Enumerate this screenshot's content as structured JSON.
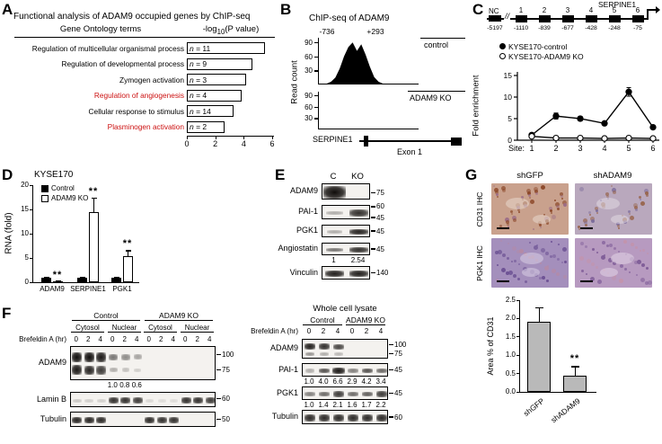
{
  "colors": {
    "highlight_red": "#cc1111",
    "gray_bar": "#b9b9b9",
    "blot_bg": "#f4f2ef"
  },
  "panelA": {
    "label": "A",
    "title": "Functional analysis of ADAM9 occupied genes by ChIP-seq",
    "header_terms": "Gene Ontology terms",
    "header_value_pre": "-log",
    "header_value_sub": "10",
    "header_value_post": "(P value)",
    "n_prefix": "n",
    "chart_data": {
      "type": "bar",
      "orientation": "horizontal",
      "title": "Functional analysis of ADAM9 occupied genes by ChIP-seq",
      "xlabel": "-log10(P value)",
      "xlim": [
        0,
        6
      ],
      "xticks": [
        0,
        2,
        4,
        6
      ],
      "categories": [
        "Regulation of multicellular organismal process",
        "Regulation of developmental process",
        "Zymogen activation",
        "Regulation of angiogenesis",
        "Cellular response to stimulus",
        "Plasminogen activation"
      ],
      "values": [
        5.4,
        4.5,
        4.1,
        3.8,
        3.2,
        2.6
      ],
      "n_values": [
        11,
        9,
        3,
        4,
        14,
        2
      ],
      "red_terms": [
        false,
        false,
        false,
        true,
        false,
        true
      ]
    }
  },
  "panelB": {
    "label": "B",
    "title": "ChIP-seq of ADAM9",
    "ylabel": "Read count",
    "region_start": "-736",
    "region_end": "+293",
    "ymax": 100,
    "tracks": [
      {
        "name": "control",
        "yticks": [
          90,
          60,
          30
        ],
        "peak_profile": [
          0,
          2,
          6,
          15,
          34,
          60,
          80,
          90,
          72,
          86,
          64,
          38,
          16,
          6,
          2,
          0
        ]
      },
      {
        "name": "ADAM9 KO",
        "yticks": [
          90,
          60,
          30
        ],
        "peak_profile": [
          0,
          1,
          2,
          1,
          2,
          1,
          1,
          2,
          1,
          2,
          1,
          1,
          2,
          1,
          1,
          0
        ]
      }
    ],
    "gene_label": "SERPINE1",
    "exon_label": "Exon 1"
  },
  "panelC": {
    "label": "C",
    "diagram": {
      "nc_label": "NC",
      "break_mark": "//",
      "sites": [
        "1",
        "2",
        "3",
        "4",
        "5",
        "6"
      ],
      "gene_label": "SERPINE1",
      "nc_position": "-5197",
      "site_positions": [
        "-1110",
        "-839",
        "-677",
        "-428",
        "-248",
        "-75"
      ]
    },
    "legend": [
      {
        "label": "KYSE170-control",
        "marker": "filled"
      },
      {
        "label": "KYSE170-ADAM9 KO",
        "marker": "open"
      }
    ],
    "xaxis_prefix": "Site:",
    "chart_data": {
      "type": "line",
      "ylabel": "Fold enrichment",
      "ylim": [
        0,
        15
      ],
      "yticks": [
        0,
        5,
        10,
        15
      ],
      "x": [
        1,
        2,
        3,
        4,
        5,
        6
      ],
      "series": [
        {
          "name": "KYSE170-control",
          "marker": "filled",
          "values": [
            1.2,
            5.6,
            5.0,
            3.9,
            11.2,
            3.0
          ],
          "errors": [
            0.3,
            0.7,
            0.5,
            0.4,
            1.0,
            0.4
          ]
        },
        {
          "name": "KYSE170-ADAM9 KO",
          "marker": "open",
          "values": [
            0.9,
            0.5,
            0.5,
            0.4,
            0.5,
            0.4
          ],
          "errors": [
            0.2,
            0.1,
            0.1,
            0.1,
            0.1,
            0.1
          ]
        }
      ]
    }
  },
  "panelD": {
    "label": "D",
    "title": "KYSE170",
    "chart_data": {
      "type": "bar",
      "ylabel": "RNA (fold)",
      "ylim": [
        0,
        20
      ],
      "yticks": [
        0,
        5,
        10,
        15,
        20
      ],
      "categories": [
        "ADAM9",
        "SERPINE1",
        "PGK1"
      ],
      "series": [
        {
          "name": "Control",
          "fill": "#000000",
          "values": [
            1.0,
            1.0,
            1.0
          ],
          "errors": [
            0.1,
            0.2,
            0.1
          ]
        },
        {
          "name": "ADAM9 KO",
          "fill": "#ffffff",
          "values": [
            0.15,
            14.5,
            5.3
          ],
          "errors": [
            0.1,
            3.0,
            1.3
          ]
        }
      ],
      "significance": [
        "**",
        "**",
        "**"
      ]
    }
  },
  "panelE": {
    "label": "E",
    "lanes": [
      "C",
      "KO"
    ],
    "rows": [
      {
        "name": "ADAM9",
        "h": 18,
        "markers": [
          {
            "v": "75",
            "y": 0.6
          }
        ],
        "bands": [
          [
            0,
            0.5,
            1.0,
            1.2,
            1.5
          ]
        ]
      },
      {
        "name": "PAI-1",
        "h": 16,
        "markers": [
          {
            "v": "60",
            "y": 0.12
          },
          {
            "v": "45",
            "y": 0.88
          }
        ],
        "bands": [
          [
            0,
            0.5,
            0.3,
            0.85
          ],
          [
            1,
            0.5,
            0.85,
            1.0
          ]
        ]
      },
      {
        "name": "PGK1",
        "h": 14,
        "markers": [
          {
            "v": "45",
            "y": 0.5
          }
        ],
        "bands": [
          [
            0,
            0.5,
            0.3,
            0.8
          ],
          [
            1,
            0.5,
            0.9,
            1.0
          ]
        ]
      },
      {
        "name": "Angiostatin",
        "h": 14,
        "markers": [
          {
            "v": "45",
            "y": 0.5
          }
        ],
        "bands": [
          [
            0,
            0.5,
            0.55,
            0.9
          ],
          [
            1,
            0.5,
            0.85,
            1.0
          ]
        ],
        "values": [
          "1",
          "2.54"
        ]
      },
      {
        "name": "Vinculin",
        "h": 15,
        "markers": [
          {
            "v": "140",
            "y": 0.5
          }
        ],
        "bands": [
          [
            0,
            0.5,
            0.92,
            1.0
          ],
          [
            1,
            0.5,
            0.92,
            1.0
          ]
        ]
      }
    ]
  },
  "panelF": {
    "label": "F",
    "left": {
      "groups": [
        "Control",
        "ADAM9 KO"
      ],
      "fractions": [
        "Cytosol",
        "Nuclear",
        "Cytosol",
        "Nuclear"
      ],
      "treatment": "Brefeldin A (hr)",
      "times": [
        "0",
        "2",
        "4",
        "0",
        "2",
        "4",
        "0",
        "2",
        "4",
        "0",
        "2",
        "4"
      ],
      "rows": [
        {
          "name": "ADAM9",
          "h": 38,
          "markers": [
            {
              "v": "100",
              "y": 0.25
            },
            {
              "v": "75",
              "y": 0.7
            }
          ],
          "bands": [
            [
              0,
              0.3,
              1,
              1.05,
              0.6
            ],
            [
              1,
              0.3,
              1,
              1.05,
              0.6
            ],
            [
              2,
              0.3,
              0.95,
              1.05,
              0.6
            ],
            [
              0,
              0.68,
              0.95,
              1.05,
              0.6
            ],
            [
              1,
              0.68,
              0.9,
              1.05,
              0.6
            ],
            [
              2,
              0.68,
              0.8,
              1.0,
              0.6
            ],
            [
              3,
              0.3,
              0.55,
              0.9,
              0.55
            ],
            [
              4,
              0.3,
              0.45,
              0.9,
              0.55
            ],
            [
              5,
              0.3,
              0.35,
              0.85,
              0.55
            ],
            [
              3,
              0.68,
              0.3,
              0.8,
              0.5
            ],
            [
              4,
              0.68,
              0.22,
              0.75,
              0.5
            ],
            [
              5,
              0.68,
              0.16,
              0.7,
              0.5
            ]
          ],
          "values": [
            "",
            "",
            "",
            "1.0",
            "0.8",
            "0.6",
            "",
            "",
            "",
            "",
            "",
            ""
          ]
        },
        {
          "name": "Lamin B",
          "h": 17,
          "markers": [
            {
              "v": "60",
              "y": 0.45
            }
          ],
          "bands": [
            [
              0,
              0.5,
              0.18,
              0.9
            ],
            [
              1,
              0.5,
              0.15,
              0.9
            ],
            [
              2,
              0.5,
              0.15,
              0.9
            ],
            [
              3,
              0.5,
              0.85,
              1.0
            ],
            [
              4,
              0.5,
              0.85,
              1.0
            ],
            [
              5,
              0.5,
              0.8,
              1.0
            ],
            [
              6,
              0.5,
              0.12,
              0.85
            ],
            [
              7,
              0.5,
              0.1,
              0.85
            ],
            [
              8,
              0.5,
              0.1,
              0.85
            ],
            [
              9,
              0.5,
              0.85,
              1.0
            ],
            [
              10,
              0.5,
              0.85,
              1.0
            ],
            [
              11,
              0.5,
              0.8,
              1.0
            ]
          ]
        },
        {
          "name": "Tubulin",
          "h": 17,
          "markers": [
            {
              "v": "50",
              "y": 0.5
            }
          ],
          "bands": [
            [
              0,
              0.5,
              0.9,
              1.0
            ],
            [
              1,
              0.5,
              0.9,
              1.0
            ],
            [
              2,
              0.5,
              0.88,
              1.0
            ],
            [
              6,
              0.5,
              0.88,
              1.0
            ],
            [
              7,
              0.5,
              0.85,
              1.0
            ],
            [
              8,
              0.5,
              0.85,
              1.0
            ]
          ]
        }
      ]
    },
    "right": {
      "title": "Whole cell lysate",
      "groups": [
        "Control",
        "ADAM9 KO"
      ],
      "treatment": "Brefeldin A (hr)",
      "times": [
        "0",
        "2",
        "4",
        "0",
        "2",
        "4"
      ],
      "rows": [
        {
          "name": "ADAM9",
          "h": 22,
          "markers": [
            {
              "v": "100",
              "y": 0.28
            },
            {
              "v": "75",
              "y": 0.75
            }
          ],
          "bands": [
            [
              0,
              0.35,
              0.92,
              1.0,
              0.7
            ],
            [
              1,
              0.35,
              0.85,
              1.0,
              0.7
            ],
            [
              2,
              0.35,
              0.75,
              0.95,
              0.7
            ],
            [
              0,
              0.72,
              0.4,
              0.85,
              0.6
            ],
            [
              1,
              0.72,
              0.3,
              0.8,
              0.6
            ],
            [
              2,
              0.72,
              0.25,
              0.8,
              0.6
            ]
          ]
        },
        {
          "name": "PAI-1",
          "h": 15,
          "markers": [
            {
              "v": "45",
              "y": 0.5
            }
          ],
          "bands": [
            [
              0,
              0.5,
              0.3,
              0.8
            ],
            [
              1,
              0.5,
              0.7,
              0.95
            ],
            [
              2,
              0.5,
              0.95,
              1.05
            ],
            [
              3,
              0.5,
              0.5,
              0.9
            ],
            [
              4,
              0.5,
              0.7,
              0.95
            ],
            [
              5,
              0.5,
              0.6,
              0.9
            ]
          ],
          "values": [
            "1.0",
            "4.0",
            "6.6",
            "2.9",
            "4.2",
            "3.4"
          ]
        },
        {
          "name": "PGK1",
          "h": 15,
          "markers": [
            {
              "v": "45",
              "y": 0.5
            }
          ],
          "bands": [
            [
              0,
              0.5,
              0.5,
              0.9
            ],
            [
              1,
              0.5,
              0.6,
              0.9
            ],
            [
              2,
              0.5,
              0.8,
              0.95
            ],
            [
              3,
              0.5,
              0.6,
              0.9
            ],
            [
              4,
              0.5,
              0.65,
              0.9
            ],
            [
              5,
              0.5,
              0.8,
              0.95
            ]
          ],
          "values": [
            "1.0",
            "1.4",
            "2.1",
            "1.6",
            "1.7",
            "2.2"
          ]
        },
        {
          "name": "Tubulin",
          "h": 16,
          "markers": [
            {
              "v": "60",
              "y": 0.5
            }
          ],
          "bands": [
            [
              0,
              0.5,
              0.88,
              1.0
            ],
            [
              1,
              0.5,
              0.88,
              1.0
            ],
            [
              2,
              0.5,
              0.88,
              1.0
            ],
            [
              3,
              0.5,
              0.88,
              1.0
            ],
            [
              4,
              0.5,
              0.88,
              1.0
            ],
            [
              5,
              0.5,
              0.88,
              1.0
            ]
          ]
        }
      ]
    }
  },
  "panelG": {
    "label": "G",
    "col_headers": [
      "shGFP",
      "shADAM9"
    ],
    "row_labels": [
      "CD31 IHC",
      "PGK1 IHC"
    ],
    "images": [
      {
        "name": "cd31-shgfp",
        "base": "#c9a18d",
        "stain": "#8a4526",
        "accent": "#9b6c86",
        "light": "#e8d8cd",
        "dots": 55
      },
      {
        "name": "cd31-shadam9",
        "base": "#b9a8bd",
        "stain": "#97644a",
        "accent": "#7a6a9a",
        "light": "#e2d9e2",
        "dots": 40
      },
      {
        "name": "pgk1-shgfp",
        "base": "#a48fbc",
        "stain": "#6a4f92",
        "accent": "#b58aa5",
        "light": "#d9cfe3",
        "dots": 50
      },
      {
        "name": "pgk1-shadam9",
        "base": "#b79ac0",
        "stain": "#7d5a96",
        "accent": "#c393ab",
        "light": "#e3d5e6",
        "dots": 45
      }
    ],
    "chart_data": {
      "type": "bar",
      "ylabel": "Area % of CD31",
      "ylim": [
        0,
        2.5
      ],
      "yticks": [
        "0.0",
        "0.5",
        "1.0",
        "1.5",
        "2.0",
        "2.5"
      ],
      "categories": [
        "shGFP",
        "shADAM9"
      ],
      "values": [
        1.9,
        0.45
      ],
      "errors": [
        0.4,
        0.25
      ],
      "significance": [
        "",
        "**"
      ]
    }
  }
}
